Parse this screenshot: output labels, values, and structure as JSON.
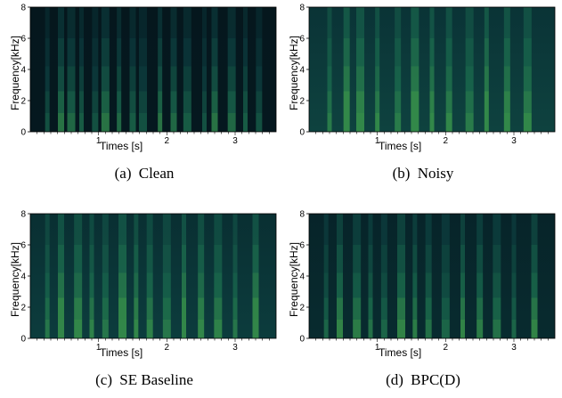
{
  "chart_data": [
    {
      "type": "heatmap",
      "tag": "(a)",
      "title": "Clean",
      "xlabel": "Times [s]",
      "ylabel": "Frequency[kHz]",
      "xlim": [
        0,
        3.6
      ],
      "ylim": [
        0,
        8
      ],
      "xticks": [
        1,
        2,
        3
      ],
      "yticks": [
        0,
        2,
        4,
        6,
        8
      ],
      "background_level": 0.04,
      "speech_columns_s": [
        0.25,
        0.45,
        0.6,
        0.75,
        0.95,
        1.1,
        1.3,
        1.5,
        1.65,
        1.9,
        2.1,
        2.3,
        2.55,
        2.7,
        2.95,
        3.15,
        3.35
      ]
    },
    {
      "type": "heatmap",
      "tag": "(b)",
      "title": "Noisy",
      "xlabel": "Times [s]",
      "ylabel": "Frequency[kHz]",
      "xlim": [
        0,
        3.6
      ],
      "ylim": [
        0,
        8
      ],
      "xticks": [
        1,
        2,
        3
      ],
      "yticks": [
        0,
        2,
        4,
        6,
        8
      ],
      "background_level": 0.34,
      "speech_columns_s": [
        0.3,
        0.55,
        0.75,
        1.0,
        1.3,
        1.55,
        1.8,
        2.05,
        2.35,
        2.6,
        2.9,
        3.2
      ]
    },
    {
      "type": "heatmap",
      "tag": "(c)",
      "title": "SE Baseline",
      "xlabel": "Times [s]",
      "ylabel": "Frequency[kHz]",
      "xlim": [
        0,
        3.6
      ],
      "ylim": [
        0,
        8
      ],
      "xticks": [
        1,
        2,
        3
      ],
      "yticks": [
        0,
        2,
        4,
        6,
        8
      ],
      "background_level": 0.3,
      "speech_columns_s": [
        0.25,
        0.45,
        0.7,
        0.9,
        1.1,
        1.35,
        1.55,
        1.75,
        2.0,
        2.25,
        2.5,
        2.75,
        3.0,
        3.3
      ]
    },
    {
      "type": "heatmap",
      "tag": "(d)",
      "title": "BPC(D)",
      "xlabel": "Times [s]",
      "ylabel": "Frequency[kHz]",
      "xlim": [
        0,
        3.6
      ],
      "ylim": [
        0,
        8
      ],
      "xticks": [
        1,
        2,
        3
      ],
      "yticks": [
        0,
        2,
        4,
        6,
        8
      ],
      "background_level": 0.18,
      "speech_columns_s": [
        0.25,
        0.45,
        0.7,
        0.9,
        1.1,
        1.35,
        1.55,
        1.75,
        2.0,
        2.25,
        2.5,
        2.75,
        3.0,
        3.3
      ]
    }
  ],
  "colormap": [
    "#04131a",
    "#0b3a3c",
    "#1a6a4e",
    "#3c9a4c"
  ]
}
